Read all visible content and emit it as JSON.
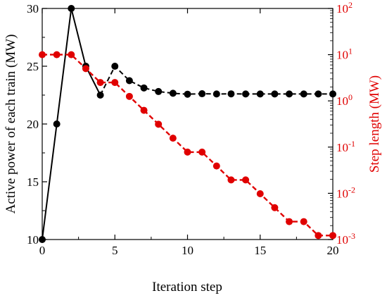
{
  "chart_data": {
    "type": "line",
    "xlabel": "Iteration step",
    "ylabel_left": "Active power of each train (MW)",
    "ylabel_right": "Step length (MW)",
    "xlim": [
      0,
      20
    ],
    "ylim_left": [
      10,
      30
    ],
    "ylim_right": [
      0.001,
      100
    ],
    "y_right_scale": "log",
    "x_ticks": [
      "0",
      "5",
      "10",
      "15",
      "20"
    ],
    "y_left_ticks": [
      "10",
      "15",
      "20",
      "25",
      "30"
    ],
    "y_right_ticks": [
      {
        "base": "10",
        "exp": "-3",
        "value": 0.001
      },
      {
        "base": "10",
        "exp": "-2",
        "value": 0.01
      },
      {
        "base": "10",
        "exp": "-1",
        "value": 0.1
      },
      {
        "base": "10",
        "exp": "0",
        "value": 1
      },
      {
        "base": "10",
        "exp": "1",
        "value": 10
      },
      {
        "base": "10",
        "exp": "2",
        "value": 100
      }
    ],
    "series": [
      {
        "axis": "left",
        "color": "#000000",
        "x": [
          0,
          1,
          2,
          3,
          4,
          5,
          6,
          7,
          8,
          9,
          10,
          11,
          12,
          13,
          14,
          15,
          16,
          17,
          18,
          19,
          20
        ],
        "values": [
          10,
          20,
          30,
          25,
          22.5,
          25,
          23.75,
          23.12,
          22.81,
          22.66,
          22.58,
          22.62,
          22.6,
          22.61,
          22.6,
          22.6,
          22.6,
          22.6,
          22.6,
          22.6,
          22.6
        ],
        "segments": [
          [
            0,
            2,
            "solid"
          ],
          [
            2,
            4,
            "solid"
          ],
          [
            4,
            20,
            "dashed"
          ]
        ]
      },
      {
        "axis": "right",
        "color": "#e00000",
        "x": [
          0,
          1,
          2,
          3,
          4,
          5,
          6,
          7,
          8,
          9,
          10,
          11,
          12,
          13,
          14,
          15,
          16,
          17,
          18,
          19,
          20
        ],
        "values": [
          10,
          10,
          10,
          5,
          2.5,
          2.5,
          1.25,
          0.625,
          0.3125,
          0.156,
          0.078,
          0.078,
          0.039,
          0.0195,
          0.0195,
          0.0098,
          0.0049,
          0.00244,
          0.00244,
          0.00122,
          0.00122
        ],
        "segments": [
          [
            0,
            20,
            "dashed"
          ]
        ]
      }
    ]
  }
}
